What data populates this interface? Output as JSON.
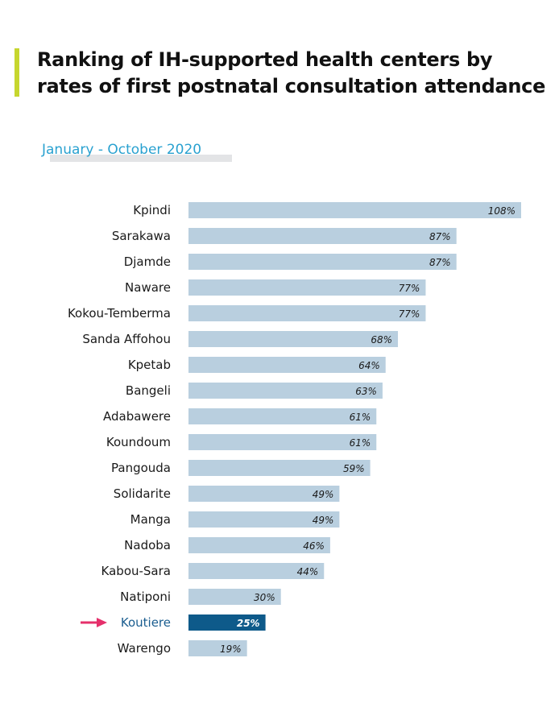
{
  "header": {
    "title_line1": "Ranking of IH-supported health centers by",
    "title_line2": "rates of first postnatal consultation attendance",
    "subtitle": "January - October 2020"
  },
  "colors": {
    "accent": "#c6d62e",
    "subtitle": "#29a1d0",
    "bar": "#b9cfdf",
    "bar_highlight": "#0e5a8a",
    "highlight_label": "#1a5d8f",
    "arrow": "#e5306b"
  },
  "chart_data": {
    "type": "bar",
    "orientation": "horizontal",
    "categories": [
      "Kpindi",
      "Sarakawa",
      "Djamde",
      "Naware",
      "Kokou-Temberma",
      "Sanda Affohou",
      "Kpetab",
      "Bangeli",
      "Adabawere",
      "Koundoum",
      "Pangouda",
      "Solidarite",
      "Manga",
      "Nadoba",
      "Kabou-Sara",
      "Natiponi",
      "Koutiere",
      "Warengo"
    ],
    "values": [
      108,
      87,
      87,
      77,
      77,
      68,
      64,
      63,
      61,
      61,
      59,
      49,
      49,
      46,
      44,
      30,
      25,
      19
    ],
    "value_labels": [
      "108%",
      "87%",
      "87%",
      "77%",
      "77%",
      "68%",
      "64%",
      "63%",
      "61%",
      "61%",
      "59%",
      "49%",
      "49%",
      "46%",
      "44%",
      "30%",
      "25%",
      "19%"
    ],
    "highlight": "Koutiere",
    "xlim": [
      0,
      108
    ]
  }
}
